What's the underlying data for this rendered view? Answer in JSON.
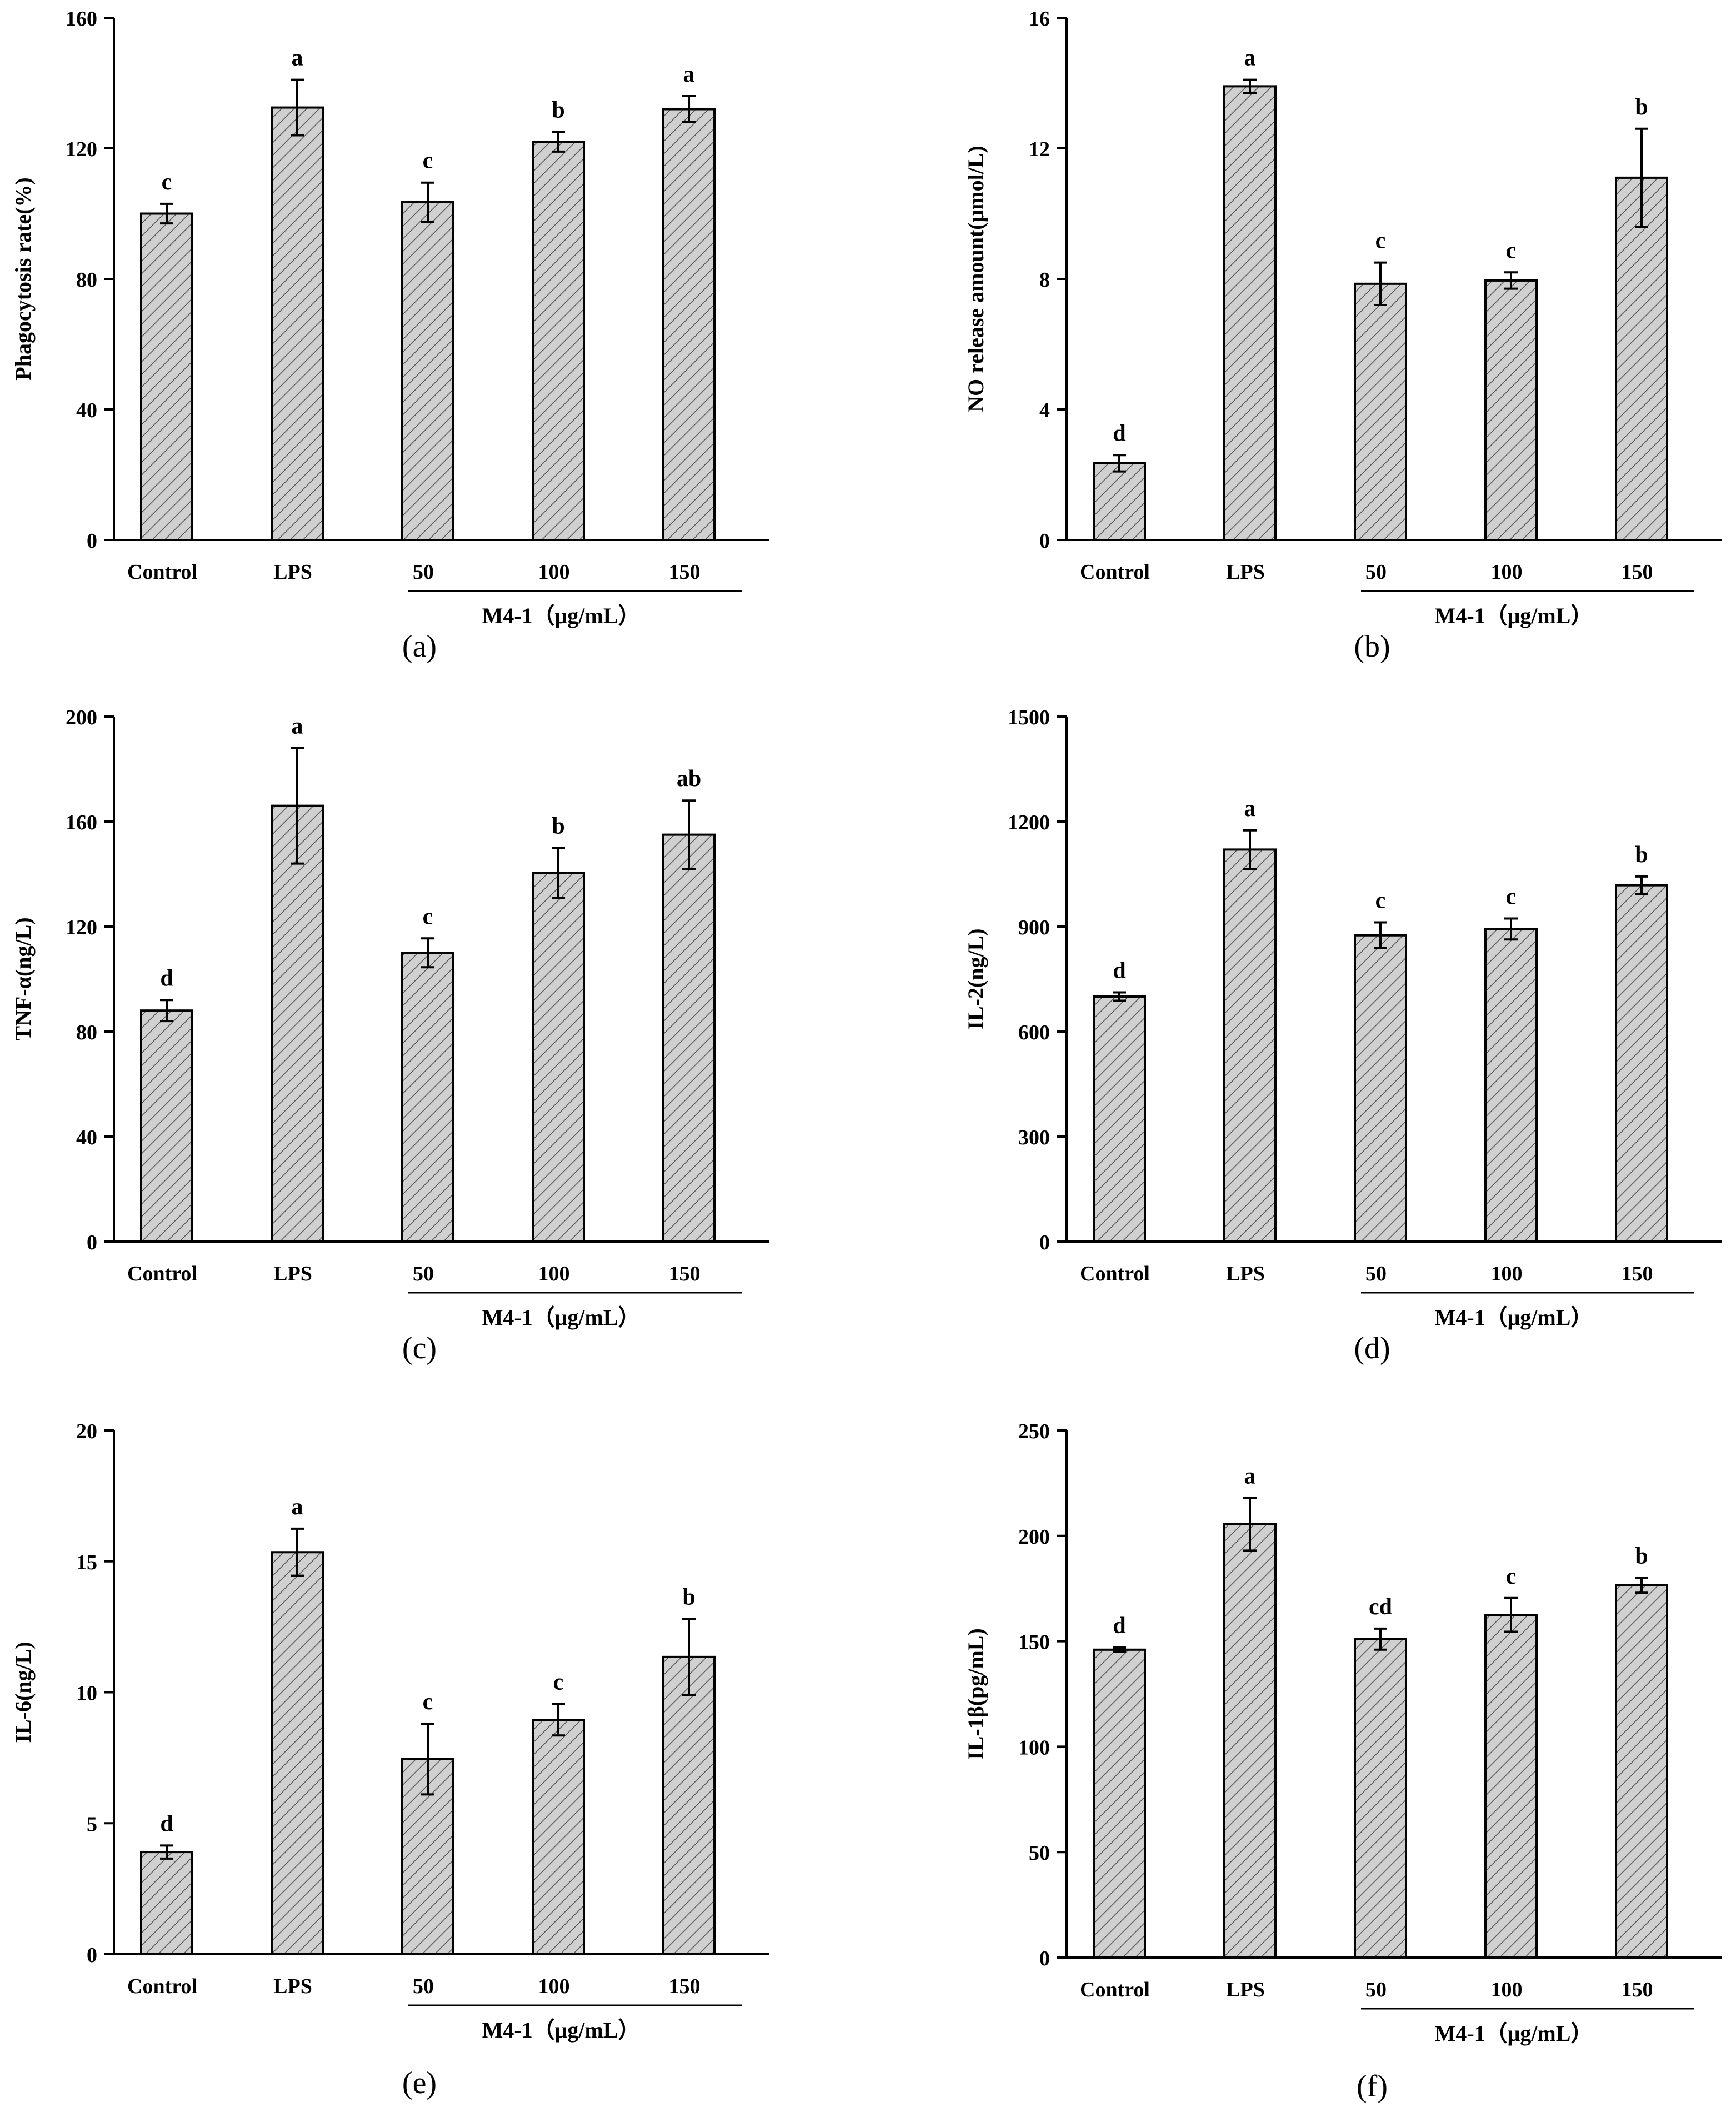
{
  "chart_data": [
    {
      "id": "a",
      "type": "bar",
      "panel_label": "(a)",
      "ylabel": "Phagocytosis rate(%)",
      "xlabel": "M4-1（μg/mL）",
      "categories": [
        "Control",
        "LPS",
        "50",
        "100",
        "150"
      ],
      "values": [
        100,
        132.5,
        103.5,
        122,
        132
      ],
      "errors": [
        3,
        8.5,
        6,
        3,
        4
      ],
      "sig_letters": [
        "c",
        "a",
        "c",
        "b",
        "a"
      ],
      "ylim": [
        0,
        160
      ],
      "yticks": [
        0,
        40,
        80,
        120,
        160
      ]
    },
    {
      "id": "b",
      "type": "bar",
      "panel_label": "(b)",
      "ylabel": "NO release amount(μmol/L)",
      "xlabel": "M4-1（μg/mL）",
      "categories": [
        "Control",
        "LPS",
        "50",
        "100",
        "150"
      ],
      "values": [
        2.35,
        13.9,
        7.85,
        7.95,
        11.1
      ],
      "errors": [
        0.25,
        0.2,
        0.65,
        0.25,
        1.5
      ],
      "sig_letters": [
        "d",
        "a",
        "c",
        "c",
        "b"
      ],
      "ylim": [
        0,
        16
      ],
      "yticks": [
        0,
        4,
        8,
        12,
        16
      ]
    },
    {
      "id": "c",
      "type": "bar",
      "panel_label": "(c)",
      "ylabel": "TNF-α(ng/L)",
      "xlabel": "M4-1（μg/mL）",
      "categories": [
        "Control",
        "LPS",
        "50",
        "100",
        "150"
      ],
      "values": [
        88,
        166,
        110,
        140.5,
        155
      ],
      "errors": [
        4,
        22,
        5.5,
        9.5,
        13
      ],
      "sig_letters": [
        "d",
        "a",
        "c",
        "b",
        "ab"
      ],
      "ylim": [
        0,
        200
      ],
      "yticks": [
        0,
        40,
        80,
        120,
        160,
        200
      ]
    },
    {
      "id": "d",
      "type": "bar",
      "panel_label": "(d)",
      "ylabel": "IL-2(ng/L)",
      "xlabel": "M4-1（μg/mL）",
      "categories": [
        "Control",
        "LPS",
        "50",
        "100",
        "150"
      ],
      "values": [
        700,
        1120,
        875,
        893,
        1018
      ],
      "errors": [
        12,
        55,
        37,
        30,
        25
      ],
      "sig_letters": [
        "d",
        "a",
        "c",
        "c",
        "b"
      ],
      "ylim": [
        0,
        1500
      ],
      "yticks": [
        0,
        300,
        600,
        900,
        1200,
        1500
      ]
    },
    {
      "id": "e",
      "type": "bar",
      "panel_label": "(e)",
      "ylabel": "IL-6(ng/L)",
      "xlabel": "M4-1（μg/mL）",
      "categories": [
        "Control",
        "LPS",
        "50",
        "100",
        "150"
      ],
      "values": [
        3.9,
        15.35,
        7.45,
        8.95,
        11.35
      ],
      "errors": [
        0.25,
        0.9,
        1.35,
        0.6,
        1.45
      ],
      "sig_letters": [
        "d",
        "a",
        "c",
        "c",
        "b"
      ],
      "ylim": [
        0,
        20
      ],
      "yticks": [
        0,
        5,
        10,
        15,
        20
      ]
    },
    {
      "id": "f",
      "type": "bar",
      "panel_label": "(f)",
      "ylabel": "IL-1β(pg/mL)",
      "xlabel": "M4-1（μg/mL）",
      "categories": [
        "Control",
        "LPS",
        "50",
        "100",
        "150"
      ],
      "values": [
        146,
        205.5,
        151,
        162.5,
        176.5
      ],
      "errors": [
        1,
        12.5,
        5,
        8,
        3.5
      ],
      "sig_letters": [
        "d",
        "a",
        "cd",
        "c",
        "b"
      ],
      "ylim": [
        0,
        250
      ],
      "yticks": [
        0,
        50,
        100,
        150,
        200,
        250
      ]
    }
  ]
}
